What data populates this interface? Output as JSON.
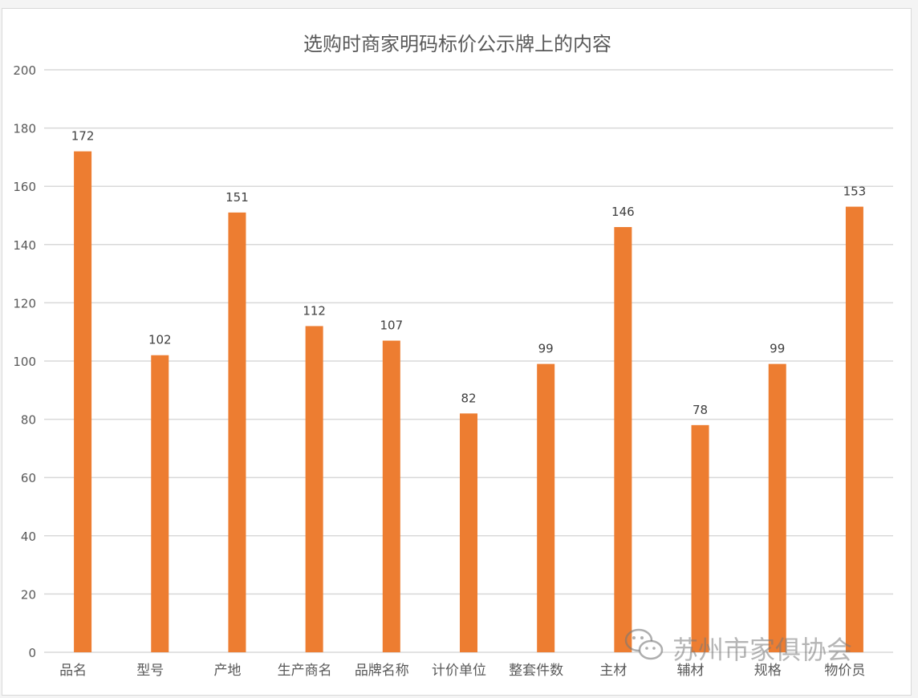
{
  "chart_data": {
    "type": "bar",
    "title": "选购时商家明码标价公示牌上的内容",
    "xlabel": "",
    "ylabel": "",
    "categories": [
      "品名",
      "型号",
      "产地",
      "生产商名",
      "品牌名称",
      "计价单位",
      "整套件数",
      "主材",
      "辅材",
      "规格",
      "物价员"
    ],
    "values": [
      172,
      102,
      151,
      112,
      107,
      82,
      99,
      146,
      78,
      99,
      153
    ],
    "ylim": [
      0,
      200
    ],
    "yticks": [
      0,
      20,
      40,
      60,
      80,
      100,
      120,
      140,
      160,
      180,
      200
    ],
    "grid": true,
    "legend": "none",
    "data_labels": true,
    "bar_color": "#ed7d31"
  },
  "watermark": {
    "text": "苏州市家俱协会",
    "icon": "wechat-icon"
  },
  "colors": {
    "bar": "#ed7d31",
    "gridline": "#d9d9d9",
    "axis_text": "#595959",
    "title_text": "#595959"
  }
}
